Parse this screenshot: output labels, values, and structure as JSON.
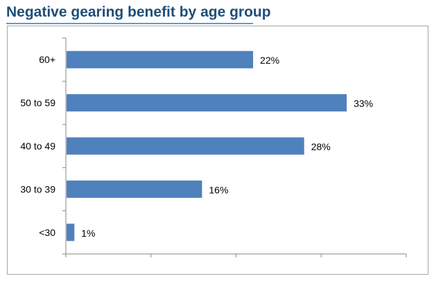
{
  "chart_data": {
    "type": "bar",
    "orientation": "horizontal",
    "title": "Negative gearing benefit by age group",
    "categories": [
      "60+",
      "50 to 59",
      "40 to 49",
      "30 to 39",
      "<30"
    ],
    "values": [
      22,
      33,
      28,
      16,
      1
    ],
    "data_labels": [
      "22%",
      "33%",
      "28%",
      "16%",
      "1%"
    ],
    "unit": "%",
    "xlim": [
      0,
      40
    ],
    "x_ticks": [
      0,
      10,
      20,
      30,
      40
    ],
    "x_tick_labels_shown": false,
    "xlabel": "",
    "ylabel": "",
    "grid": false,
    "legend": "none",
    "bar_color": "#4f81bd",
    "title_color": "#1f4e79",
    "title_rule_color": "#5b9bd5"
  }
}
